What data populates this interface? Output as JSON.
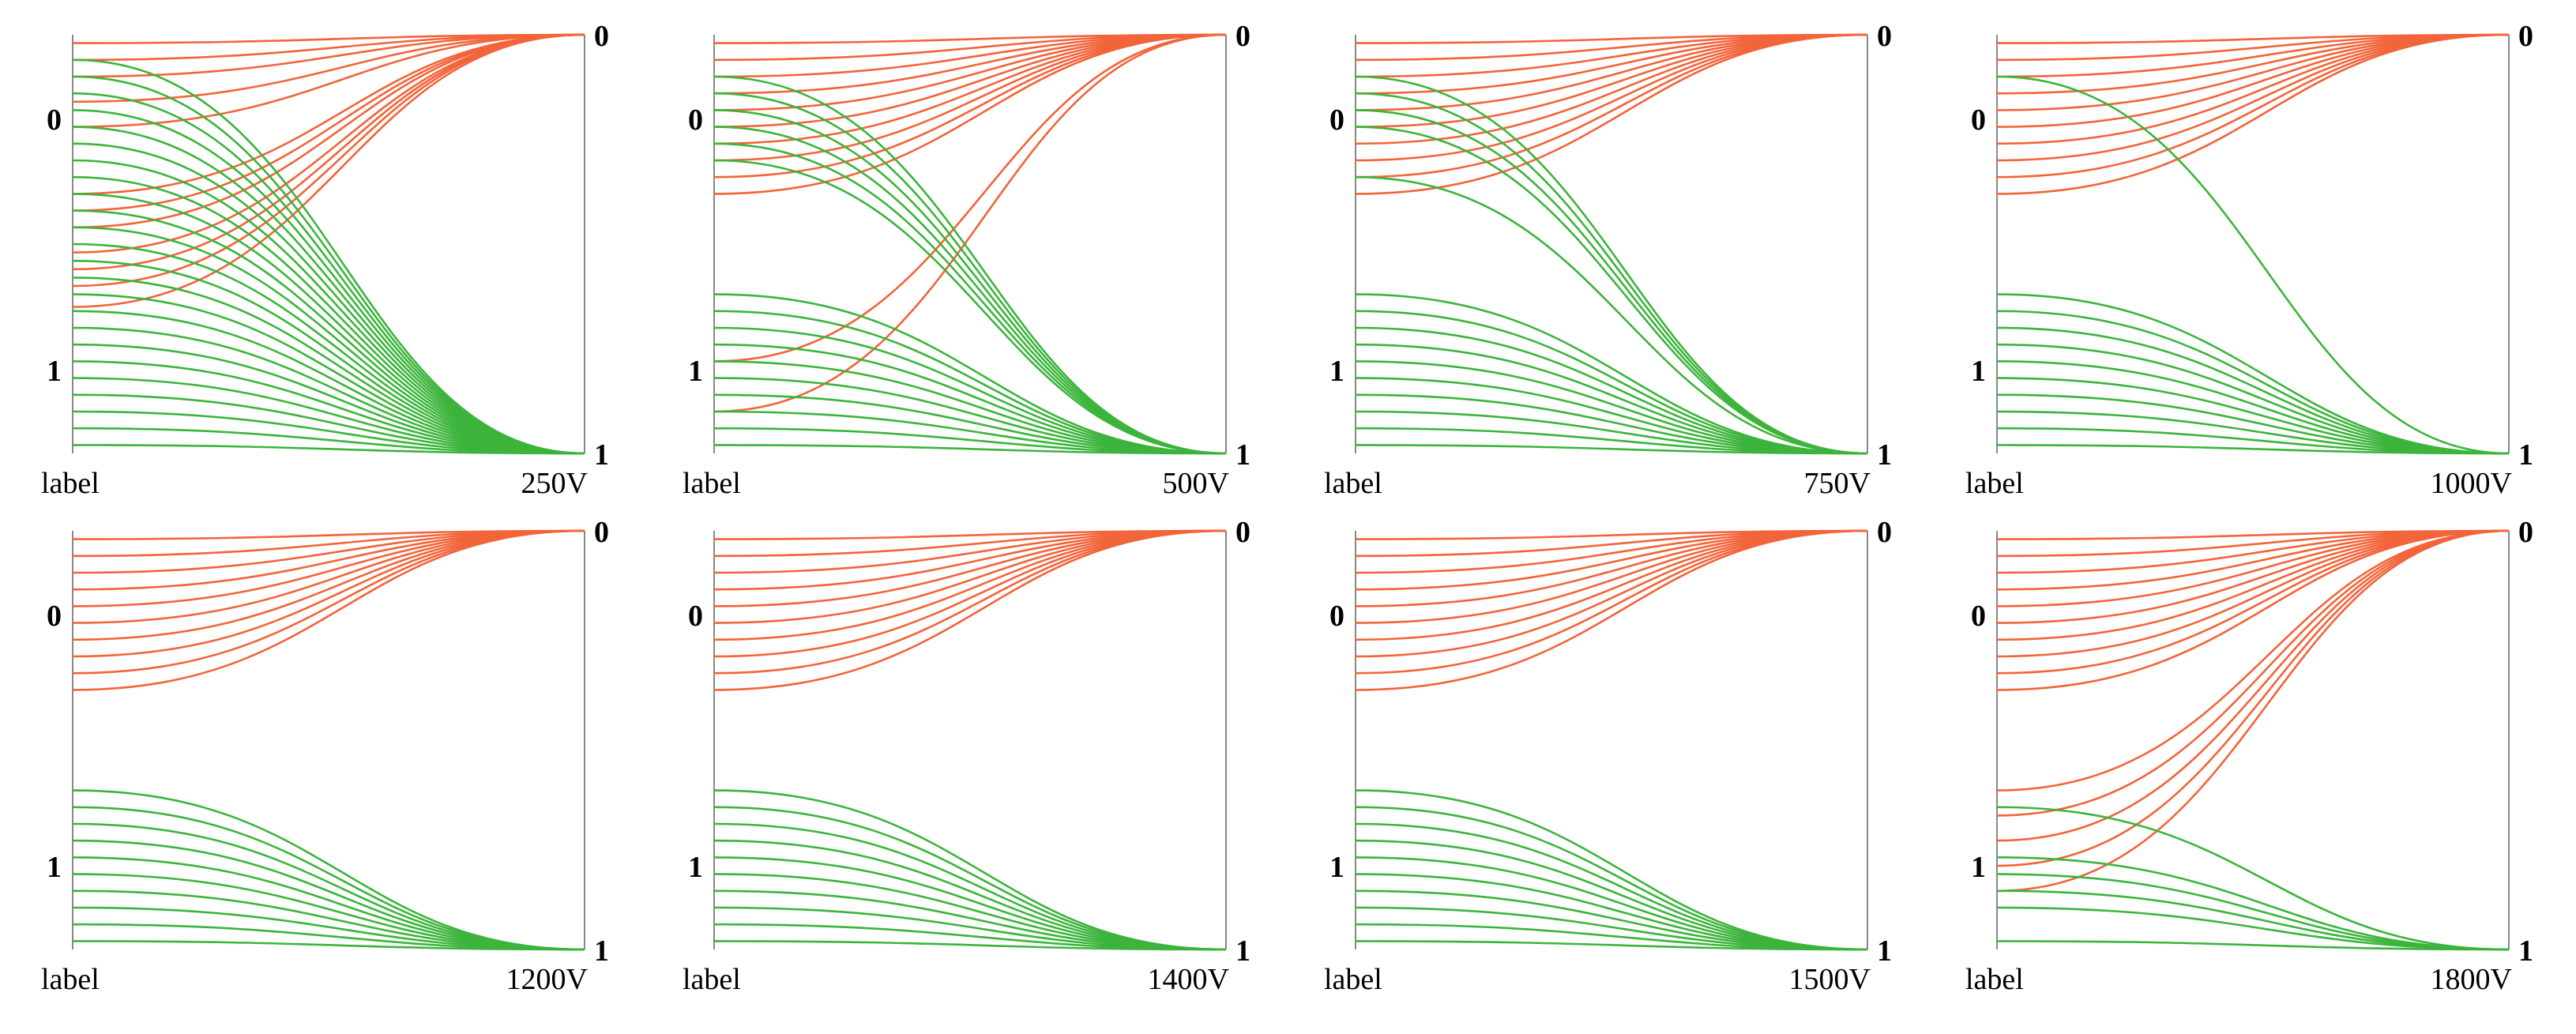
{
  "colors": {
    "orange": "#f2643a",
    "green": "#3cb43c",
    "axis": "#888888",
    "text": "#000000"
  },
  "chart_data": [
    {
      "type": "line",
      "title": "250V",
      "left_ticks": [
        "0",
        "1"
      ],
      "right_ticks": [
        "0",
        "1"
      ],
      "xlabel": "label",
      "ylim": [
        0,
        1
      ],
      "left_tick_values": [
        0.2,
        0.8
      ],
      "right_tick_values": [
        0,
        1
      ],
      "series": [
        {
          "name": "orange",
          "color": "orange",
          "start": [
            0.02,
            0.06,
            0.1,
            0.16,
            0.22,
            0.38,
            0.42,
            0.46,
            0.52,
            0.56,
            0.6,
            0.65
          ],
          "end": 0
        },
        {
          "name": "green",
          "color": "green",
          "start": [
            0.06,
            0.1,
            0.14,
            0.18,
            0.22,
            0.26,
            0.3,
            0.34,
            0.38,
            0.42,
            0.46,
            0.5,
            0.54,
            0.58,
            0.62,
            0.66,
            0.7,
            0.74,
            0.78,
            0.82,
            0.86,
            0.9,
            0.94,
            0.98
          ],
          "end": 1
        }
      ]
    },
    {
      "type": "line",
      "title": "500V",
      "left_ticks": [
        "0",
        "1"
      ],
      "right_ticks": [
        "0",
        "1"
      ],
      "xlabel": "label",
      "ylim": [
        0,
        1
      ],
      "left_tick_values": [
        0.2,
        0.8
      ],
      "right_tick_values": [
        0,
        1
      ],
      "series": [
        {
          "name": "orange",
          "color": "orange",
          "start": [
            0.02,
            0.06,
            0.1,
            0.14,
            0.18,
            0.22,
            0.26,
            0.3,
            0.34,
            0.38,
            0.78,
            0.9
          ],
          "end": 0
        },
        {
          "name": "green",
          "color": "green",
          "start": [
            0.1,
            0.14,
            0.18,
            0.22,
            0.26,
            0.3,
            0.62,
            0.66,
            0.7,
            0.74,
            0.78,
            0.82,
            0.86,
            0.9,
            0.94,
            0.98
          ],
          "end": 1
        }
      ]
    },
    {
      "type": "line",
      "title": "750V",
      "left_ticks": [
        "0",
        "1"
      ],
      "right_ticks": [
        "0",
        "1"
      ],
      "xlabel": "label",
      "ylim": [
        0,
        1
      ],
      "left_tick_values": [
        0.2,
        0.8
      ],
      "right_tick_values": [
        0,
        1
      ],
      "series": [
        {
          "name": "orange",
          "color": "orange",
          "start": [
            0.02,
            0.06,
            0.1,
            0.14,
            0.18,
            0.22,
            0.26,
            0.3,
            0.34,
            0.38
          ],
          "end": 0
        },
        {
          "name": "green",
          "color": "green",
          "start": [
            0.1,
            0.14,
            0.18,
            0.22,
            0.34,
            0.62,
            0.66,
            0.7,
            0.74,
            0.78,
            0.82,
            0.86,
            0.9,
            0.94,
            0.98
          ],
          "end": 1
        }
      ]
    },
    {
      "type": "line",
      "title": "1000V",
      "left_ticks": [
        "0",
        "1"
      ],
      "right_ticks": [
        "0",
        "1"
      ],
      "xlabel": "label",
      "ylim": [
        0,
        1
      ],
      "left_tick_values": [
        0.2,
        0.8
      ],
      "right_tick_values": [
        0,
        1
      ],
      "series": [
        {
          "name": "orange",
          "color": "orange",
          "start": [
            0.02,
            0.06,
            0.1,
            0.14,
            0.18,
            0.22,
            0.26,
            0.3,
            0.34,
            0.38
          ],
          "end": 0
        },
        {
          "name": "green",
          "color": "green",
          "start": [
            0.1,
            0.62,
            0.66,
            0.7,
            0.74,
            0.78,
            0.82,
            0.86,
            0.9,
            0.94,
            0.98
          ],
          "end": 1
        }
      ]
    },
    {
      "type": "line",
      "title": "1200V",
      "left_ticks": [
        "0",
        "1"
      ],
      "right_ticks": [
        "0",
        "1"
      ],
      "xlabel": "label",
      "ylim": [
        0,
        1
      ],
      "left_tick_values": [
        0.2,
        0.8
      ],
      "right_tick_values": [
        0,
        1
      ],
      "series": [
        {
          "name": "orange",
          "color": "orange",
          "start": [
            0.02,
            0.06,
            0.1,
            0.14,
            0.18,
            0.22,
            0.26,
            0.3,
            0.34,
            0.38
          ],
          "end": 0
        },
        {
          "name": "green",
          "color": "green",
          "start": [
            0.62,
            0.66,
            0.7,
            0.74,
            0.78,
            0.82,
            0.86,
            0.9,
            0.94,
            0.98
          ],
          "end": 1
        }
      ]
    },
    {
      "type": "line",
      "title": "1400V",
      "left_ticks": [
        "0",
        "1"
      ],
      "right_ticks": [
        "0",
        "1"
      ],
      "xlabel": "label",
      "ylim": [
        0,
        1
      ],
      "left_tick_values": [
        0.2,
        0.8
      ],
      "right_tick_values": [
        0,
        1
      ],
      "series": [
        {
          "name": "orange",
          "color": "orange",
          "start": [
            0.02,
            0.06,
            0.1,
            0.14,
            0.18,
            0.22,
            0.26,
            0.3,
            0.34,
            0.38
          ],
          "end": 0
        },
        {
          "name": "green",
          "color": "green",
          "start": [
            0.62,
            0.66,
            0.7,
            0.74,
            0.78,
            0.82,
            0.86,
            0.9,
            0.94,
            0.98
          ],
          "end": 1
        }
      ]
    },
    {
      "type": "line",
      "title": "1500V",
      "left_ticks": [
        "0",
        "1"
      ],
      "right_ticks": [
        "0",
        "1"
      ],
      "xlabel": "label",
      "ylim": [
        0,
        1
      ],
      "left_tick_values": [
        0.2,
        0.8
      ],
      "right_tick_values": [
        0,
        1
      ],
      "series": [
        {
          "name": "orange",
          "color": "orange",
          "start": [
            0.02,
            0.06,
            0.1,
            0.14,
            0.18,
            0.22,
            0.26,
            0.3,
            0.34,
            0.38
          ],
          "end": 0
        },
        {
          "name": "green",
          "color": "green",
          "start": [
            0.62,
            0.66,
            0.7,
            0.74,
            0.78,
            0.82,
            0.86,
            0.9,
            0.94,
            0.98
          ],
          "end": 1
        }
      ]
    },
    {
      "type": "line",
      "title": "1800V",
      "left_ticks": [
        "0",
        "1"
      ],
      "right_ticks": [
        "0",
        "1"
      ],
      "xlabel": "label",
      "ylim": [
        0,
        1
      ],
      "left_tick_values": [
        0.2,
        0.8
      ],
      "right_tick_values": [
        0,
        1
      ],
      "series": [
        {
          "name": "orange",
          "color": "orange",
          "start": [
            0.02,
            0.06,
            0.1,
            0.14,
            0.18,
            0.22,
            0.26,
            0.3,
            0.34,
            0.38,
            0.62,
            0.68,
            0.74,
            0.8,
            0.86
          ],
          "end": 0
        },
        {
          "name": "green",
          "color": "green",
          "start": [
            0.66,
            0.78,
            0.82,
            0.86,
            0.9,
            0.98
          ],
          "end": 1
        }
      ]
    }
  ]
}
